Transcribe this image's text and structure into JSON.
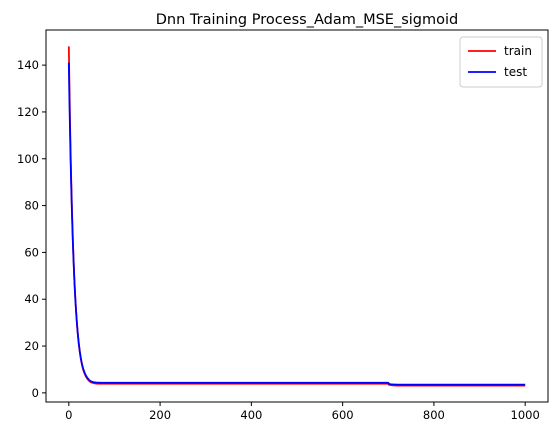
{
  "chart_data": {
    "type": "line",
    "title": "Dnn Training Process_Adam_MSE_sigmoid",
    "xlabel": "",
    "ylabel": "",
    "xlim": [
      -50,
      1050
    ],
    "ylim": [
      -3.9,
      155
    ],
    "xticks": [
      0,
      200,
      400,
      600,
      800,
      1000
    ],
    "yticks": [
      0,
      20,
      40,
      60,
      80,
      100,
      120,
      140
    ],
    "legend_position": "top-right",
    "series": [
      {
        "name": "train",
        "color": "#ff0000",
        "x": [
          0,
          1,
          2,
          3,
          4,
          5,
          6,
          7,
          8,
          9,
          10,
          12,
          14,
          16,
          18,
          20,
          22,
          24,
          26,
          28,
          30,
          32,
          35,
          38,
          41,
          44,
          47,
          50,
          55,
          60,
          65,
          70,
          80,
          100,
          200,
          300,
          400,
          500,
          600,
          700,
          701,
          705,
          710,
          720,
          800,
          900,
          1000
        ],
        "values": [
          148,
          135,
          123,
          112,
          102,
          93,
          85,
          77.5,
          70.7,
          64.5,
          58.9,
          49.2,
          41.2,
          34.5,
          29.0,
          24.4,
          20.6,
          17.5,
          14.9,
          12.8,
          11.0,
          9.6,
          8.0,
          6.8,
          5.9,
          5.2,
          4.7,
          4.4,
          4.1,
          3.95,
          3.9,
          3.9,
          3.9,
          3.9,
          3.9,
          3.9,
          3.9,
          3.9,
          3.9,
          3.9,
          3.5,
          3.3,
          3.2,
          3.1,
          3.1,
          3.1,
          3.1
        ]
      },
      {
        "name": "test",
        "color": "#0000ff",
        "x": [
          0,
          1,
          2,
          3,
          4,
          5,
          6,
          7,
          8,
          9,
          10,
          12,
          14,
          16,
          18,
          20,
          22,
          24,
          26,
          28,
          30,
          32,
          35,
          38,
          41,
          44,
          47,
          50,
          55,
          60,
          65,
          70,
          80,
          100,
          200,
          300,
          400,
          500,
          600,
          700,
          701,
          705,
          710,
          720,
          800,
          900,
          1000
        ],
        "values": [
          141,
          129,
          118,
          108,
          99,
          90.5,
          83,
          76,
          69.5,
          63.7,
          58.3,
          48.8,
          41.0,
          34.5,
          29.1,
          24.6,
          20.9,
          17.8,
          15.2,
          13.1,
          11.4,
          10.0,
          8.4,
          7.2,
          6.3,
          5.6,
          5.1,
          4.8,
          4.5,
          4.4,
          4.35,
          4.3,
          4.3,
          4.3,
          4.3,
          4.3,
          4.3,
          4.3,
          4.3,
          4.3,
          3.9,
          3.7,
          3.6,
          3.5,
          3.5,
          3.5,
          3.5
        ]
      }
    ]
  }
}
